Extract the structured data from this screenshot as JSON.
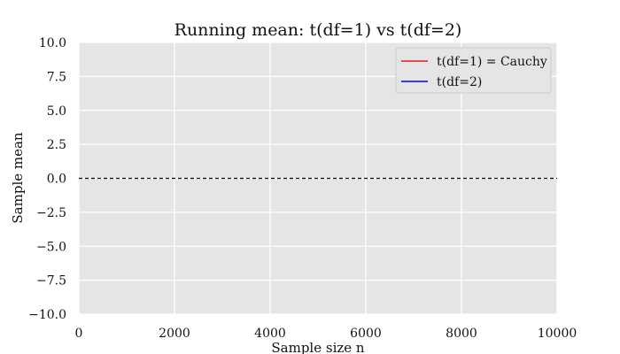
{
  "chart_data": {
    "type": "line",
    "title": "Running mean: t(df=1) vs t(df=2)",
    "xlabel": "Sample size n",
    "ylabel": "Sample mean",
    "xlim": [
      0,
      10000
    ],
    "ylim": [
      -10,
      10
    ],
    "x_ticks": [
      0,
      2000,
      4000,
      6000,
      8000,
      10000
    ],
    "x_tick_labels": [
      "0",
      "2000",
      "4000",
      "6000",
      "8000",
      "10000"
    ],
    "y_ticks": [
      10,
      7.5,
      5,
      2.5,
      0,
      -2.5,
      -5,
      -7.5,
      -10
    ],
    "y_tick_labels": [
      "10.0",
      "7.5",
      "5.0",
      "2.5",
      "0.0",
      "−2.5",
      "−5.0",
      "−7.5",
      "−10.0"
    ],
    "grid": true,
    "legend_position": "top-right",
    "series": [
      {
        "name": "t(df=1) = Cauchy",
        "color": "#e41a1c",
        "x": [],
        "y": []
      },
      {
        "name": "t(df=2)",
        "color": "#0000ff",
        "x": [],
        "y": []
      }
    ],
    "reference_line": {
      "y": 0,
      "style": "dashed",
      "color": "#000000"
    }
  }
}
